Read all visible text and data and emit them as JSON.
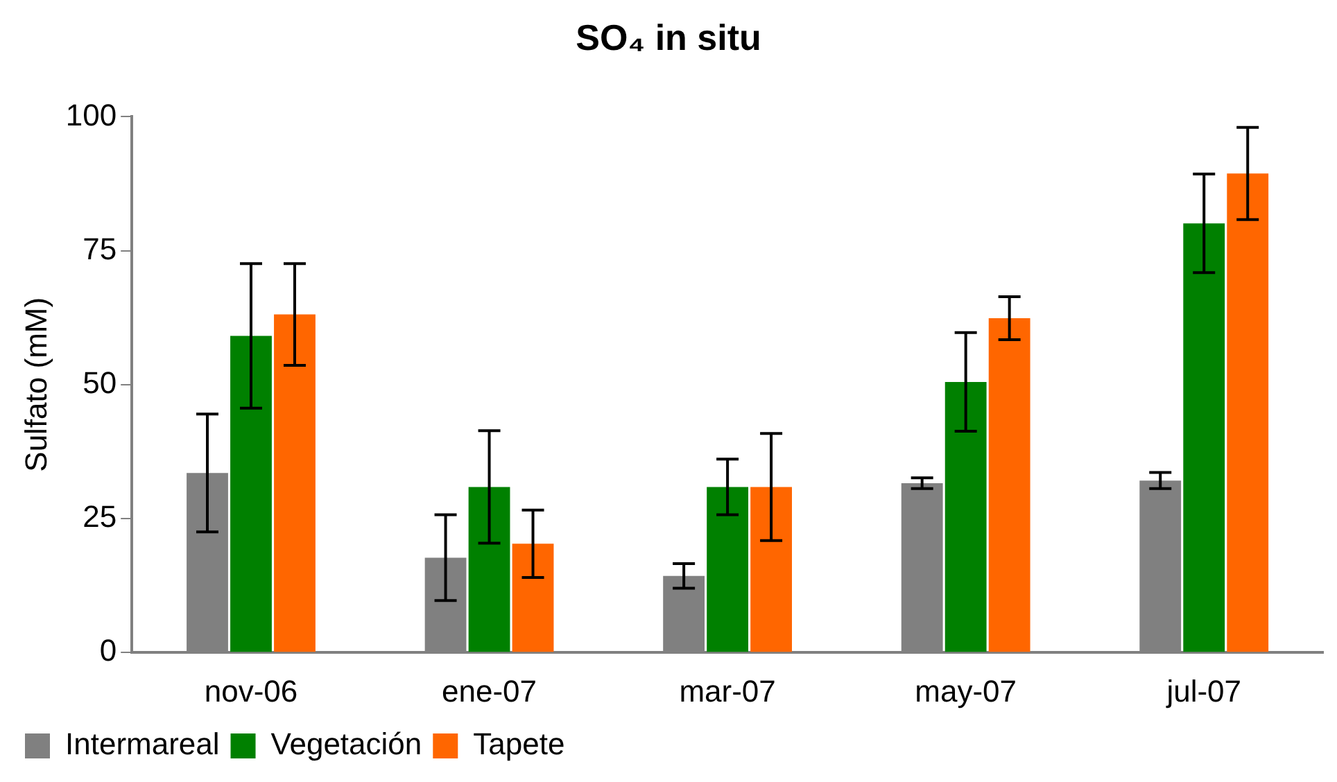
{
  "chart_data": {
    "type": "bar",
    "title": "SO₄ in situ",
    "ylabel": "Sulfato (mM)",
    "categories": [
      "nov-06",
      "ene-07",
      "mar-07",
      "may-07",
      "jul-07"
    ],
    "series": [
      {
        "name": "Intermareal",
        "color": "#808080",
        "values": [
          33.5,
          17.7,
          14.3,
          31.6,
          32.1
        ],
        "errors": [
          11,
          8,
          2.3,
          1,
          1.5
        ]
      },
      {
        "name": "Vegetación",
        "color": "#008000",
        "values": [
          59.1,
          30.9,
          30.9,
          50.5,
          80.1
        ],
        "errors": [
          13.5,
          10.5,
          5.2,
          9.2,
          9.2
        ]
      },
      {
        "name": "Tapete",
        "color": "#ff6600",
        "values": [
          63.1,
          20.3,
          30.9,
          62.4,
          89.4
        ],
        "errors": [
          9.5,
          6.3,
          10,
          4,
          8.6
        ]
      }
    ],
    "ylim": [
      0,
      100
    ],
    "yticks": [
      0,
      25,
      50,
      75,
      100
    ],
    "grid": false,
    "legend": "bottom left"
  }
}
